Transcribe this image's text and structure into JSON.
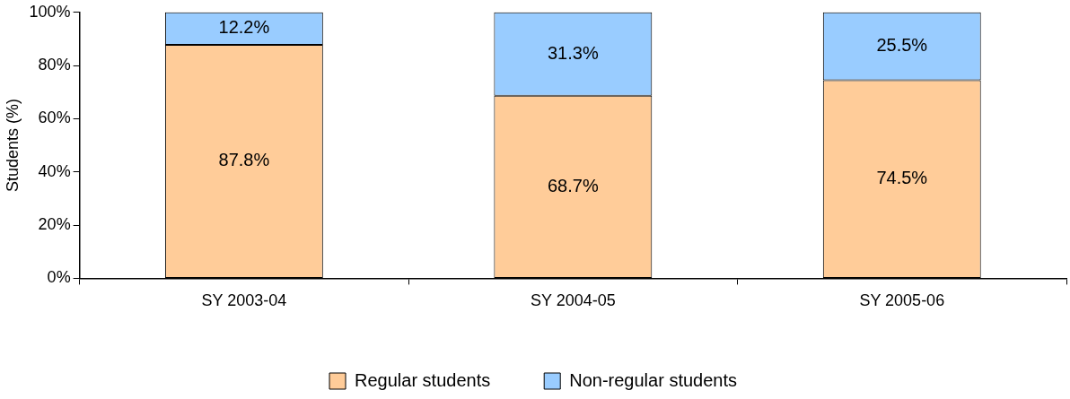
{
  "chart_data": {
    "type": "bar",
    "stacked": true,
    "ylabel": "Students (%)",
    "categories": [
      "SY 2003-04",
      "SY 2004-05",
      "SY 2005-06"
    ],
    "series": [
      {
        "name": "Regular students",
        "color": "#ffcc99",
        "values": [
          87.8,
          68.7,
          74.5
        ],
        "value_labels": [
          "87.8%",
          "68.7%",
          "74.5%"
        ]
      },
      {
        "name": "Non-regular students",
        "color": "#99ccff",
        "values": [
          12.2,
          31.3,
          25.5
        ],
        "value_labels": [
          "12.2%",
          "31.3%",
          "25.5%"
        ]
      }
    ],
    "ylim": [
      0,
      100
    ],
    "yticks": [
      {
        "value": 0,
        "label": "0%"
      },
      {
        "value": 20,
        "label": "20%"
      },
      {
        "value": 40,
        "label": "40%"
      },
      {
        "value": 60,
        "label": "60%"
      },
      {
        "value": 80,
        "label": "80%"
      },
      {
        "value": 100,
        "label": "100%"
      }
    ],
    "grid": false,
    "legend": "bottom"
  }
}
